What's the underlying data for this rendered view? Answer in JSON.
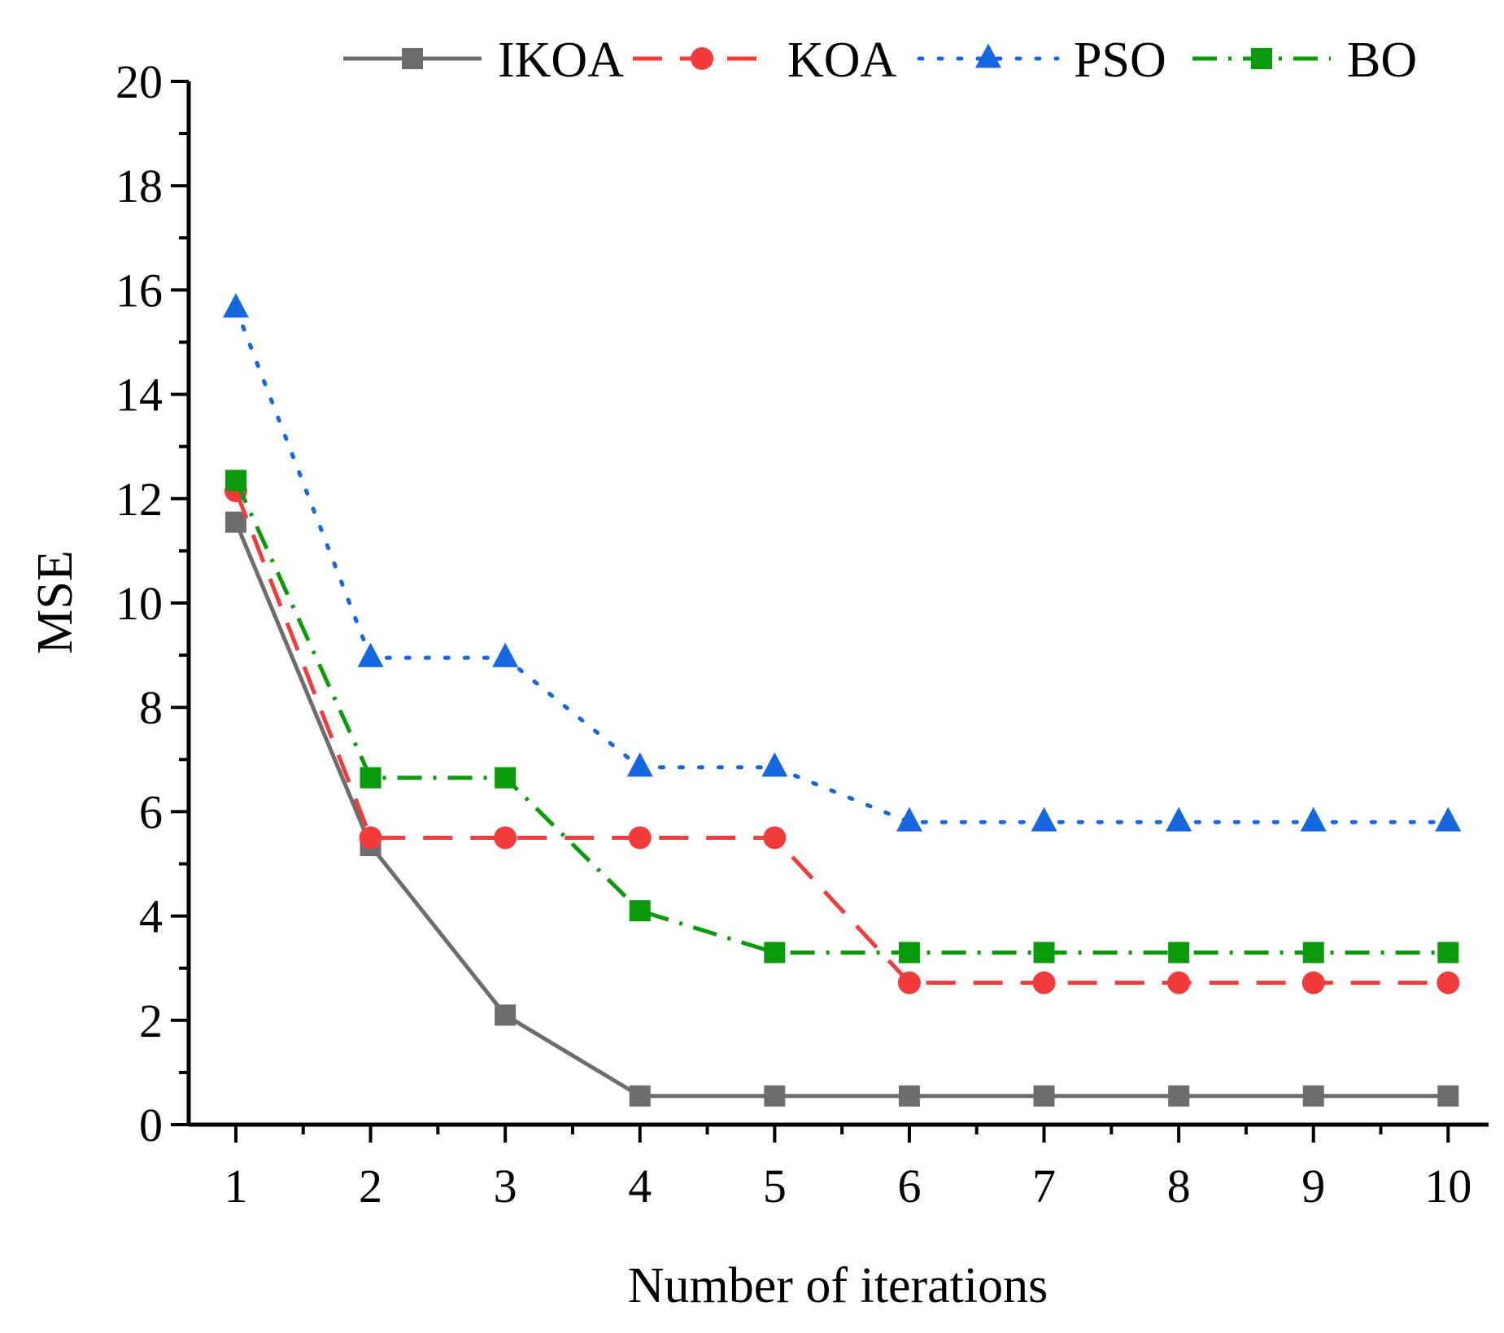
{
  "chart_data": {
    "type": "line",
    "title": "",
    "xlabel": "Number of iterations",
    "ylabel": "MSE",
    "x": [
      1,
      2,
      3,
      4,
      5,
      6,
      7,
      8,
      9,
      10
    ],
    "xlim": [
      0.65,
      10.3
    ],
    "ylim": [
      0,
      20
    ],
    "x_ticks": [
      "1",
      "2",
      "3",
      "4",
      "5",
      "6",
      "7",
      "8",
      "9",
      "10"
    ],
    "y_ticks": [
      "0",
      "2",
      "4",
      "6",
      "8",
      "10",
      "12",
      "14",
      "16",
      "18",
      "20"
    ],
    "grid": false,
    "legend_position": "top",
    "series": [
      {
        "name": "IKOA",
        "values": [
          11.55,
          5.35,
          2.1,
          0.55,
          0.55,
          0.55,
          0.55,
          0.55,
          0.55,
          0.55
        ],
        "color": "#6d6d6d",
        "line_style": "solid",
        "marker": "square"
      },
      {
        "name": "KOA",
        "values": [
          12.15,
          5.5,
          5.5,
          5.5,
          5.5,
          2.72,
          2.72,
          2.72,
          2.72,
          2.72
        ],
        "color": "#f33b3b",
        "line_style": "dash",
        "marker": "circle"
      },
      {
        "name": "PSO",
        "values": [
          15.65,
          8.95,
          8.95,
          6.85,
          6.85,
          5.8,
          5.8,
          5.8,
          5.8,
          5.8
        ],
        "color": "#1567e0",
        "line_style": "dot",
        "marker": "triangle"
      },
      {
        "name": "BO",
        "values": [
          12.35,
          6.65,
          6.65,
          4.1,
          3.3,
          3.3,
          3.3,
          3.3,
          3.3,
          3.3
        ],
        "color": "#0b9a0b",
        "line_style": "dashdot",
        "marker": "square"
      }
    ]
  }
}
